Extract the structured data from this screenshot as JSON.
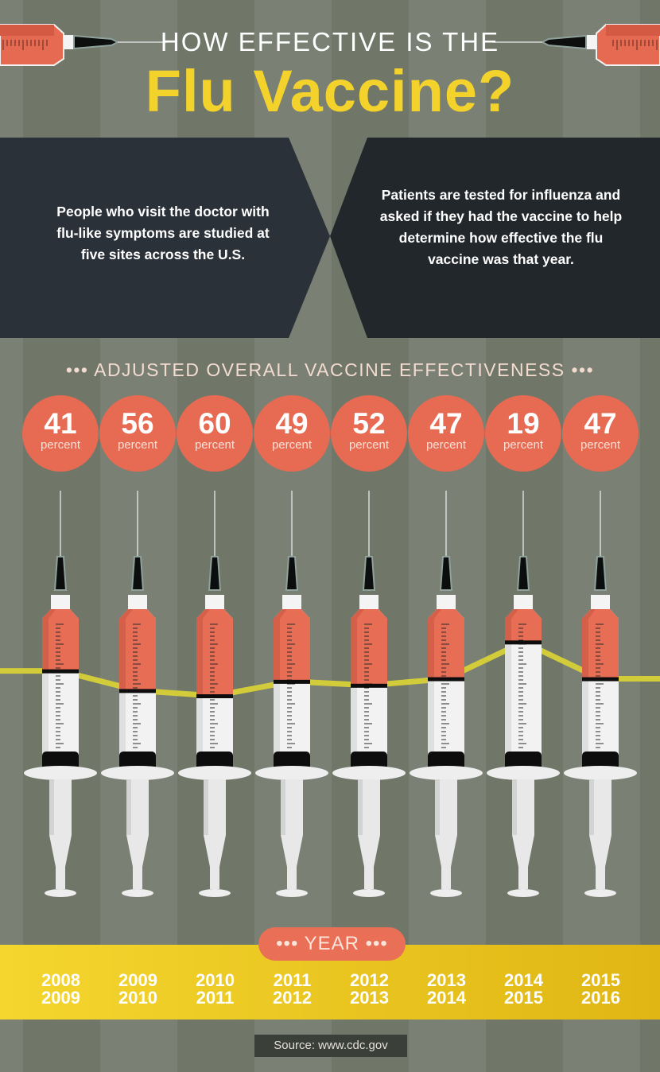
{
  "header": {
    "title_line1": "HOW EFFECTIVE IS THE",
    "title_line2": "Flu Vaccine?"
  },
  "info_panels": [
    {
      "text": "People who visit the doctor with flu-like symptoms are studied at five sites across the U.S."
    },
    {
      "text": "Patients are tested for influenza and asked if they had the vaccine to help determine how effective the flu vaccine was that year."
    }
  ],
  "colors": {
    "accent_red": "#e76a52",
    "title_yellow": "#f3d22c",
    "line_yellow": "#d2cb3a",
    "panel_dark": "#2b3138"
  },
  "chart_data": {
    "type": "bar",
    "title": "••• ADJUSTED OVERALL VACCINE EFFECTIVENESS •••",
    "xlabel": "••• YEAR •••",
    "unit_label": "percent",
    "categories": [
      "2008\n2009",
      "2009\n2010",
      "2010\n2011",
      "2011\n2012",
      "2012\n2013",
      "2013\n2014",
      "2014\n2015",
      "2015\n2016"
    ],
    "category_lines": [
      [
        "2008",
        "2009"
      ],
      [
        "2009",
        "2010"
      ],
      [
        "2010",
        "2011"
      ],
      [
        "2011",
        "2012"
      ],
      [
        "2012",
        "2013"
      ],
      [
        "2013",
        "2014"
      ],
      [
        "2014",
        "2015"
      ],
      [
        "2015",
        "2016"
      ]
    ],
    "values": [
      41,
      56,
      60,
      49,
      52,
      47,
      19,
      47
    ],
    "ylim": [
      0,
      100
    ],
    "marks": "syringe fill levels connected by a line"
  },
  "footer": {
    "source": "Source: www.cdc.gov"
  }
}
